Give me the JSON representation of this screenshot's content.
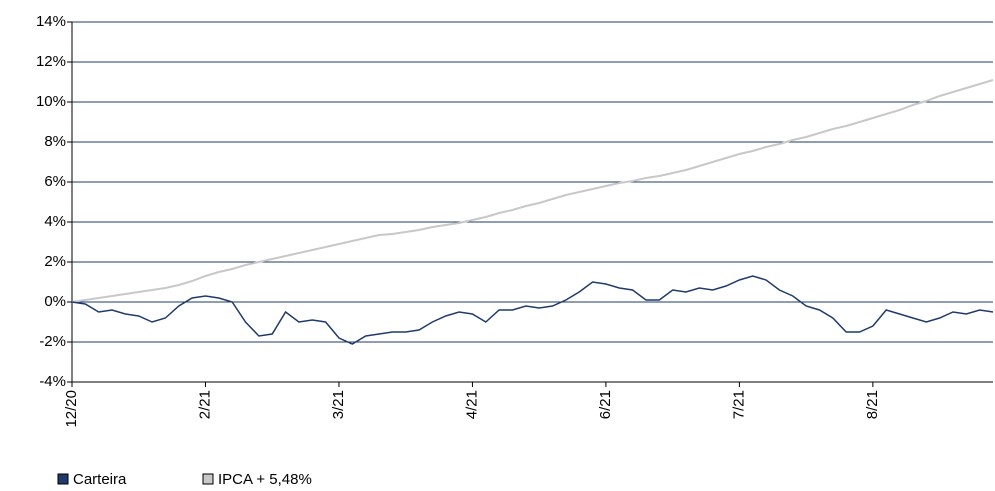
{
  "chart_data": {
    "type": "line",
    "categories": [
      "12/20",
      null,
      null,
      null,
      null,
      null,
      null,
      null,
      null,
      null,
      "2/21",
      null,
      null,
      null,
      null,
      null,
      null,
      null,
      null,
      null,
      "3/21",
      null,
      null,
      null,
      null,
      null,
      null,
      null,
      null,
      null,
      "4/21",
      null,
      null,
      null,
      null,
      null,
      null,
      null,
      null,
      null,
      "6/21",
      null,
      null,
      null,
      null,
      null,
      null,
      null,
      null,
      null,
      "7/21",
      null,
      null,
      null,
      null,
      null,
      null,
      null,
      null,
      null,
      "8/21",
      null,
      null,
      null,
      null,
      null,
      null,
      null,
      null,
      null
    ],
    "series": [
      {
        "name": "Carteira",
        "color": "#1f3a6b",
        "values": [
          0,
          -0.1,
          -0.5,
          -0.4,
          -0.6,
          -0.7,
          -1.0,
          -0.8,
          -0.2,
          0.2,
          0.3,
          0.2,
          0.0,
          -1.0,
          -1.7,
          -1.6,
          -0.5,
          -1.0,
          -0.9,
          -1.0,
          -1.8,
          -2.1,
          -1.7,
          -1.6,
          -1.5,
          -1.5,
          -1.4,
          -1.0,
          -0.7,
          -0.5,
          -0.6,
          -1.0,
          -0.4,
          -0.4,
          -0.2,
          -0.3,
          -0.2,
          0.1,
          0.5,
          1.0,
          0.9,
          0.7,
          0.6,
          0.1,
          0.1,
          0.6,
          0.5,
          0.7,
          0.6,
          0.8,
          1.1,
          1.3,
          1.1,
          0.6,
          0.3,
          -0.2,
          -0.4,
          -0.8,
          -1.5,
          -1.5,
          -1.2,
          -0.4,
          -0.6,
          -0.8,
          -1.0,
          -0.8,
          -0.5,
          -0.6,
          -0.4,
          -0.5
        ]
      },
      {
        "name": "IPCA + 5,48%",
        "color": "#c8c8c8",
        "values": [
          0,
          0.1,
          0.2,
          0.3,
          0.4,
          0.5,
          0.6,
          0.7,
          0.85,
          1.05,
          1.3,
          1.5,
          1.65,
          1.85,
          2.0,
          2.15,
          2.3,
          2.45,
          2.6,
          2.75,
          2.9,
          3.05,
          3.2,
          3.35,
          3.4,
          3.5,
          3.6,
          3.75,
          3.85,
          3.95,
          4.1,
          4.25,
          4.45,
          4.6,
          4.8,
          4.95,
          5.15,
          5.35,
          5.5,
          5.65,
          5.8,
          5.95,
          6.05,
          6.2,
          6.3,
          6.45,
          6.6,
          6.8,
          7.0,
          7.2,
          7.4,
          7.55,
          7.75,
          7.9,
          8.1,
          8.25,
          8.45,
          8.65,
          8.8,
          9.0,
          9.2,
          9.4,
          9.6,
          9.85,
          10.05,
          10.3,
          10.5,
          10.7,
          10.9,
          11.1
        ]
      }
    ],
    "ylim": [
      -4,
      14
    ],
    "yticks": [
      {
        "value": -4,
        "label": "-4%"
      },
      {
        "value": -2,
        "label": "-2%"
      },
      {
        "value": 0,
        "label": "0%"
      },
      {
        "value": 2,
        "label": "2%"
      },
      {
        "value": 4,
        "label": "4%"
      },
      {
        "value": 6,
        "label": "6%"
      },
      {
        "value": 8,
        "label": "8%"
      },
      {
        "value": 10,
        "label": "10%"
      },
      {
        "value": 12,
        "label": "12%"
      },
      {
        "value": 14,
        "label": "14%"
      }
    ],
    "grid": true,
    "grid_color": "#1f3a6b",
    "legend": "bottom-left"
  }
}
